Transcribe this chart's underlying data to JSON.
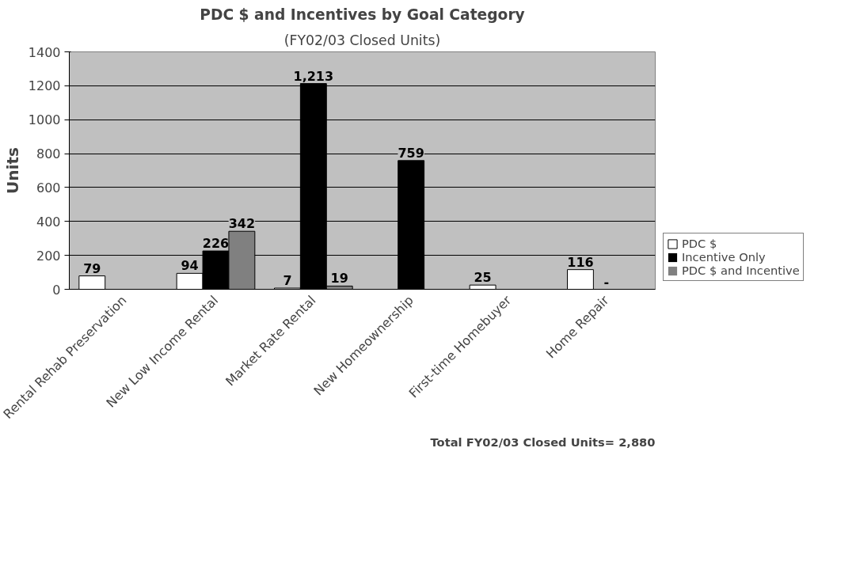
{
  "chart_data": {
    "type": "bar",
    "title": "PDC $ and Incentives by Goal Category",
    "subtitle": "(FY02/03 Closed Units)",
    "ylabel": "Units",
    "categories": [
      "Rental Rehab Preservation",
      "New Low Income Rental",
      "Market Rate Rental",
      "New Homeownership",
      "First-time Homebuyer",
      "Home Repair"
    ],
    "series": [
      {
        "name": "PDC $",
        "color": "#ffffff",
        "values": [
          79,
          94,
          7,
          0,
          25,
          116
        ],
        "value_labels": [
          "79",
          "94",
          "7",
          null,
          "25",
          "116"
        ]
      },
      {
        "name": "Incentive Only",
        "color": "#000000",
        "values": [
          0,
          226,
          1213,
          759,
          0,
          0
        ],
        "value_labels": [
          null,
          "226",
          "1,213",
          "759",
          null,
          "-"
        ]
      },
      {
        "name": "PDC $ and Incentive",
        "color": "#808080",
        "values": [
          0,
          342,
          19,
          0,
          0,
          0
        ],
        "value_labels": [
          null,
          "342",
          "19",
          null,
          null,
          null
        ]
      }
    ],
    "ylim": [
      0,
      1400
    ],
    "yticks": [
      0,
      200,
      400,
      600,
      800,
      1000,
      1200,
      1400
    ],
    "grid": "y",
    "legend": "bottom right",
    "annotations": [
      "Total FY02/03 Closed Units= 2,880"
    ]
  }
}
